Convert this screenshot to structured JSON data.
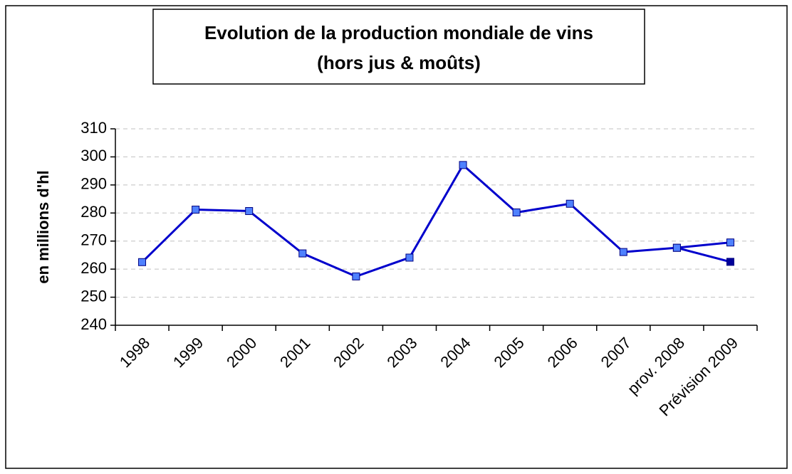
{
  "chart_data": {
    "type": "line",
    "title": "Evolution de la production mondiale de vins",
    "subtitle": "(hors jus & moûts)",
    "y_label": "en millions d'hl",
    "categories": [
      "1998",
      "1999",
      "2000",
      "2001",
      "2002",
      "2003",
      "2004",
      "2005",
      "2006",
      "2007",
      "prov. 2008",
      "Prévision 2009"
    ],
    "series": [
      {
        "color": "#0000cc",
        "marker_color": "#4f81ff",
        "values": [
          262.5,
          281.2,
          280.7,
          265.6,
          257.4,
          264.1,
          297.1,
          280.2,
          283.3,
          266.1,
          267.6,
          269.5
        ]
      },
      {
        "color": "#0000cc",
        "marker_color": "#000099",
        "values": [
          null,
          null,
          null,
          null,
          null,
          null,
          null,
          null,
          null,
          null,
          267.6,
          262.6
        ]
      }
    ],
    "ylim": [
      240,
      310
    ],
    "yticks": [
      240,
      250,
      260,
      270,
      280,
      290,
      300,
      310
    ],
    "grid": true
  }
}
